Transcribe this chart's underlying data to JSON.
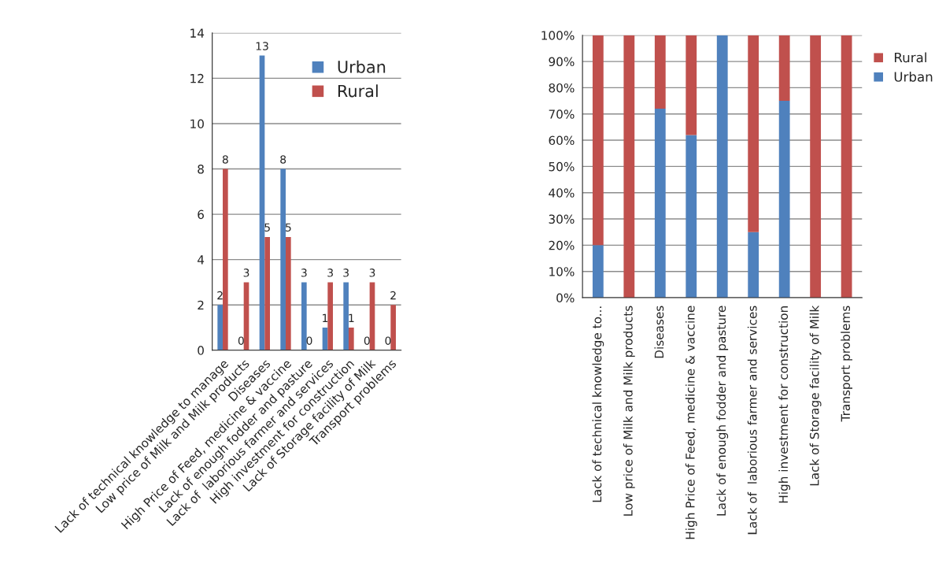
{
  "chart_data": [
    {
      "type": "bar",
      "categories": [
        "Lack of technical knowledge to manage",
        "Low price of Milk and Milk products",
        "Diseases",
        "High Price of Feed, medicine & vaccine",
        "Lack of enough fodder and pasture",
        "Lack of  laborious farmer and services",
        "High investment for construction",
        "Lack of Storage facility of Milk",
        "Transport problems"
      ],
      "series": [
        {
          "name": "Urban",
          "color": "#4f81bd",
          "values": [
            2,
            0,
            13,
            8,
            3,
            1,
            3,
            0,
            0
          ]
        },
        {
          "name": "Rural",
          "color": "#c0504d",
          "values": [
            8,
            3,
            5,
            5,
            0,
            3,
            1,
            3,
            2
          ]
        }
      ],
      "ylim": [
        0,
        14
      ],
      "yticks": [
        0,
        2,
        4,
        6,
        8,
        10,
        12,
        14
      ],
      "grid": "y",
      "legend": "top right",
      "data_labels": true
    },
    {
      "type": "bar",
      "stacked": true,
      "categories": [
        "Lack of technical knowledge to...",
        "Low price of Milk and Milk products",
        "Diseases",
        "High Price of Feed, medicine & vaccine",
        "Lack of enough fodder and pasture",
        "Lack of  laborious farmer and services",
        "High investment for construction",
        "Lack of Storage facility of Milk",
        "Transport problems"
      ],
      "series": [
        {
          "name": "Urban",
          "color": "#4f81bd",
          "values": [
            20,
            0,
            72,
            62,
            100,
            25,
            75,
            0,
            0
          ]
        },
        {
          "name": "Rural",
          "color": "#c0504d",
          "values": [
            80,
            100,
            28,
            38,
            0,
            75,
            25,
            100,
            100
          ]
        }
      ],
      "ylim": [
        0,
        100
      ],
      "yticks": [
        {
          "value": 0,
          "label": "0%"
        },
        {
          "value": 10,
          "label": "10%"
        },
        {
          "value": 20,
          "label": "20%"
        },
        {
          "value": 30,
          "label": "30%"
        },
        {
          "value": 40,
          "label": "40%"
        },
        {
          "value": 50,
          "label": "50%"
        },
        {
          "value": 60,
          "label": "60%"
        },
        {
          "value": 70,
          "label": "70%"
        },
        {
          "value": 80,
          "label": "80%"
        },
        {
          "value": 90,
          "label": "90%"
        },
        {
          "value": 100,
          "label": "100%"
        }
      ],
      "grid": "y",
      "legend": "right"
    }
  ]
}
